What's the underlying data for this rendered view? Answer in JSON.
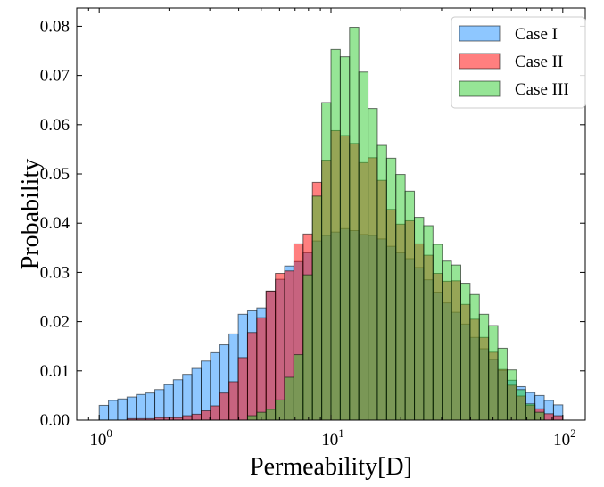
{
  "chart_data": {
    "type": "bar",
    "subtype": "overlaid-histogram",
    "title": "",
    "xlabel": "Permeability[D]",
    "ylabel": "Probability",
    "xscale": "log",
    "xlim": [
      0.8,
      125
    ],
    "ylim": [
      0,
      0.0837
    ],
    "grid": false,
    "legend_position": "top-right",
    "bin_edges": [
      1.0,
      1.0965,
      1.2023,
      1.3183,
      1.4454,
      1.5849,
      1.7378,
      1.9055,
      2.0893,
      2.2909,
      2.5119,
      2.7542,
      3.02,
      3.3113,
      3.6308,
      3.9811,
      4.3652,
      4.7863,
      5.2481,
      5.7544,
      6.3096,
      6.9183,
      7.5858,
      8.3176,
      9.1201,
      10.0,
      10.965,
      12.023,
      13.183,
      14.454,
      15.849,
      17.378,
      19.055,
      20.893,
      22.909,
      25.119,
      27.542,
      30.2,
      33.113,
      36.308,
      39.811,
      43.652,
      47.863,
      52.481,
      57.544,
      63.096,
      69.183,
      75.858,
      83.176,
      91.201,
      100.0
    ],
    "series": [
      {
        "name": "Case I",
        "color": "#1E90FF",
        "opacity": 0.5,
        "values": [
          0.003,
          0.004,
          0.0043,
          0.0047,
          0.0052,
          0.0055,
          0.0062,
          0.0072,
          0.0082,
          0.0093,
          0.0105,
          0.012,
          0.0137,
          0.0153,
          0.0175,
          0.0215,
          0.0222,
          0.0228,
          0.0262,
          0.0286,
          0.0313,
          0.0322,
          0.034,
          0.0364,
          0.0375,
          0.0382,
          0.0389,
          0.0385,
          0.0377,
          0.0375,
          0.0368,
          0.0353,
          0.034,
          0.0328,
          0.031,
          0.0285,
          0.026,
          0.0238,
          0.0219,
          0.0195,
          0.0168,
          0.0145,
          0.0123,
          0.0101,
          0.0081,
          0.0068,
          0.0056,
          0.005,
          0.004,
          0.0031
        ]
      },
      {
        "name": "Case II",
        "color": "#FF0000",
        "opacity": 0.5,
        "values": [
          0.0,
          0.0,
          0.0,
          0.0003,
          0.0003,
          0.0003,
          0.0005,
          0.0005,
          0.0005,
          0.0009,
          0.0012,
          0.0019,
          0.0029,
          0.0055,
          0.0078,
          0.0127,
          0.0178,
          0.0208,
          0.0262,
          0.0298,
          0.0303,
          0.0358,
          0.0378,
          0.0483,
          0.0528,
          0.0588,
          0.0578,
          0.0562,
          0.0523,
          0.0533,
          0.0487,
          0.0428,
          0.0398,
          0.0405,
          0.0358,
          0.0335,
          0.0298,
          0.0282,
          0.0283,
          0.0235,
          0.0205,
          0.0168,
          0.0138,
          0.0103,
          0.0071,
          0.0049,
          0.003,
          0.0023,
          0.0013,
          0.0009
        ]
      },
      {
        "name": "Case III",
        "color": "#2ECC2E",
        "opacity": 0.5,
        "values": [
          0.0,
          0.0,
          0.0,
          0.0,
          0.0,
          0.0,
          0.0,
          0.0,
          0.0,
          0.0,
          0.0,
          0.0,
          0.0,
          0.0,
          0.0,
          0.0,
          0.0,
          0.0,
          0.0,
          0.0,
          0.0,
          0.0,
          0.0,
          0.0,
          0.0,
          0.0,
          0.0,
          0.0,
          0.0,
          0.0,
          0.0,
          0.0,
          0.0,
          0.0,
          0.0,
          0.0,
          0.0,
          0.0,
          0.0,
          0.0,
          0.0,
          0.0,
          0.0,
          0.0,
          0.0,
          0.0,
          0.0,
          0.0,
          0.0,
          0.0
        ]
      }
    ],
    "case3_bins": {
      "values": [
        0.0009,
        0.0016,
        0.0022,
        0.0041,
        0.0087,
        0.0133,
        0.0295,
        0.0455,
        0.0645,
        0.0753,
        0.0738,
        0.0798,
        0.0707,
        0.0633,
        0.0558,
        0.0532,
        0.0499,
        0.0465,
        0.0412,
        0.0395,
        0.0357,
        0.0323,
        0.0315,
        0.0278,
        0.0255,
        0.0215,
        0.0192,
        0.0146,
        0.0102,
        0.0062,
        0.0033,
        0.0016
      ],
      "start_bin": 16
    },
    "yticks": [
      "0.00",
      "0.01",
      "0.02",
      "0.03",
      "0.04",
      "0.05",
      "0.06",
      "0.07",
      "0.08"
    ],
    "ytick_values": [
      0,
      0.01,
      0.02,
      0.03,
      0.04,
      0.05,
      0.06,
      0.07,
      0.08
    ],
    "xticks": [
      {
        "value": 1,
        "base": "10",
        "exp": "0"
      },
      {
        "value": 10,
        "base": "10",
        "exp": "1"
      },
      {
        "value": 100,
        "base": "10",
        "exp": "2"
      }
    ]
  }
}
